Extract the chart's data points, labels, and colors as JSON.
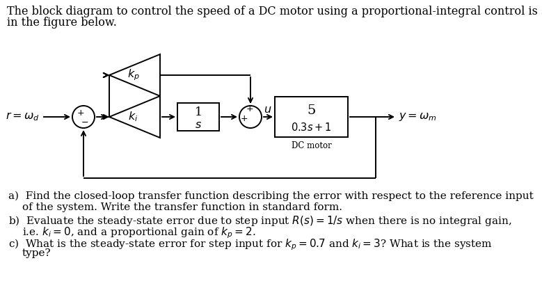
{
  "bg_color": "#ffffff",
  "title_line1": "The block diagram to control the speed of a DC motor using a proportional-integral control is shown",
  "title_line2": "in the figure below.",
  "diagram": {
    "r_label": "r = ω_d",
    "y_label": "y = ω_m",
    "kp_label": "k_p",
    "ki_label": "k_i",
    "integrator_num": "1",
    "integrator_den": "s",
    "motor_num": "5",
    "motor_den": "0.3s + 1",
    "motor_sub": "DC motor",
    "u_label": "u",
    "plus1": "+",
    "minus1": "−",
    "plus2a": "+",
    "plus2b": "+"
  },
  "q_a1": "a)  Find the closed-loop transfer function describing the error with respect to the reference input",
  "q_a2": "     of the system. Write the transfer function in standard form.",
  "q_b1": "b)  Evaluate the steady-state error due to step input R(s) = 1/s when there is no integral gain,",
  "q_b2": "     i.e. k_i = 0, and a proportional gain of k_p = 2.",
  "q_c1": "c)  What is the steady-state error for step input for  k_p = 0.7 and k_i = 3? What is the system",
  "q_c2": "     type?",
  "lw": 1.4,
  "font_title": 11.5,
  "font_q": 11.0,
  "font_diagram": 11.5
}
